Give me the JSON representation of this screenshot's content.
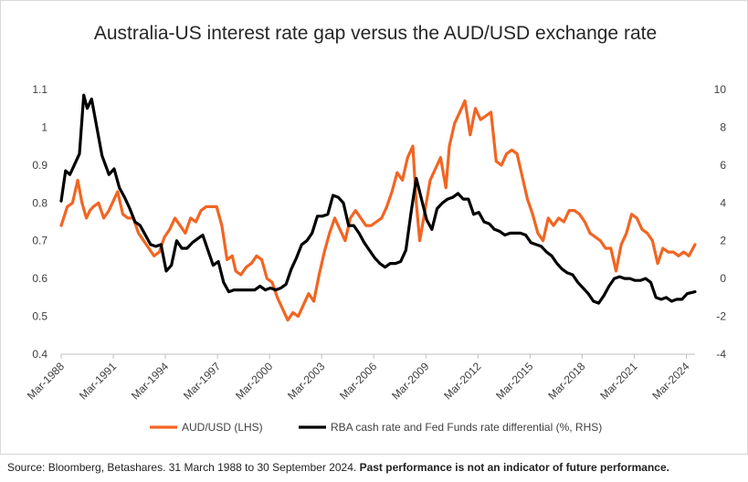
{
  "chart_data": {
    "type": "line",
    "title": "Australia-US interest rate gap versus the AUD/USD exchange rate",
    "left_axis": {
      "min": 0.4,
      "max": 1.1,
      "ticks": [
        "0.4",
        "0.5",
        "0.6",
        "0.7",
        "0.8",
        "0.9",
        "1",
        "1.1"
      ]
    },
    "right_axis": {
      "min": -4,
      "max": 10,
      "ticks": [
        "-4",
        "-2",
        "0",
        "2",
        "4",
        "6",
        "8",
        "10"
      ]
    },
    "x_axis": {
      "start": 1988.25,
      "end": 2024.75,
      "tick_labels": [
        "Mar-1988",
        "Mar-1991",
        "Mar-1994",
        "Mar-1997",
        "Mar-2000",
        "Mar-2003",
        "Mar-2006",
        "Mar-2009",
        "Mar-2012",
        "Mar-2015",
        "Mar-2018",
        "Mar-2021",
        "Mar-2024"
      ]
    },
    "grid": false,
    "legend_position": "bottom",
    "series": [
      {
        "name": "AUD/USD (LHS)",
        "axis": "left",
        "color": "#f26522",
        "x": [
          1988.25,
          1988.6,
          1988.9,
          1989.2,
          1989.45,
          1989.7,
          1989.9,
          1990.1,
          1990.4,
          1990.7,
          1991.0,
          1991.2,
          1991.5,
          1991.8,
          1992.1,
          1992.4,
          1992.7,
          1993.0,
          1993.3,
          1993.6,
          1993.9,
          1994.2,
          1994.5,
          1994.8,
          1995.1,
          1995.4,
          1995.7,
          1996.0,
          1996.3,
          1996.6,
          1996.9,
          1997.2,
          1997.5,
          1997.8,
          1998.1,
          1998.3,
          1998.6,
          1998.9,
          1999.2,
          1999.5,
          1999.8,
          2000.1,
          2000.4,
          2000.7,
          2001.0,
          2001.3,
          2001.6,
          2001.9,
          2002.2,
          2002.5,
          2002.8,
          2003.1,
          2003.4,
          2003.7,
          2004.0,
          2004.3,
          2004.6,
          2004.9,
          2005.2,
          2005.5,
          2005.8,
          2006.1,
          2006.4,
          2006.7,
          2007.0,
          2007.3,
          2007.6,
          2007.9,
          2008.2,
          2008.5,
          2008.7,
          2008.9,
          2009.2,
          2009.5,
          2009.8,
          2010.1,
          2010.4,
          2010.6,
          2010.9,
          2011.2,
          2011.5,
          2011.8,
          2012.1,
          2012.4,
          2012.7,
          2013.0,
          2013.3,
          2013.6,
          2013.9,
          2014.2,
          2014.5,
          2014.8,
          2015.1,
          2015.4,
          2015.7,
          2016.0,
          2016.3,
          2016.6,
          2016.9,
          2017.2,
          2017.5,
          2017.8,
          2018.1,
          2018.4,
          2018.7,
          2019.0,
          2019.3,
          2019.6,
          2019.9,
          2020.2,
          2020.5,
          2020.8,
          2021.1,
          2021.4,
          2021.7,
          2022.0,
          2022.3,
          2022.6,
          2022.9,
          2023.2,
          2023.5,
          2023.8,
          2024.1,
          2024.4,
          2024.75
        ],
        "values": [
          0.74,
          0.79,
          0.8,
          0.86,
          0.8,
          0.76,
          0.78,
          0.79,
          0.8,
          0.76,
          0.78,
          0.8,
          0.83,
          0.77,
          0.76,
          0.76,
          0.72,
          0.7,
          0.68,
          0.66,
          0.67,
          0.71,
          0.73,
          0.76,
          0.74,
          0.72,
          0.76,
          0.75,
          0.78,
          0.79,
          0.79,
          0.79,
          0.74,
          0.65,
          0.66,
          0.62,
          0.61,
          0.63,
          0.64,
          0.66,
          0.65,
          0.6,
          0.59,
          0.55,
          0.52,
          0.49,
          0.51,
          0.5,
          0.53,
          0.56,
          0.54,
          0.61,
          0.67,
          0.72,
          0.76,
          0.73,
          0.7,
          0.76,
          0.78,
          0.76,
          0.74,
          0.74,
          0.75,
          0.76,
          0.79,
          0.83,
          0.88,
          0.86,
          0.92,
          0.95,
          0.8,
          0.7,
          0.78,
          0.86,
          0.89,
          0.92,
          0.84,
          0.95,
          1.01,
          1.04,
          1.07,
          0.98,
          1.05,
          1.02,
          1.03,
          1.04,
          0.91,
          0.9,
          0.93,
          0.94,
          0.93,
          0.87,
          0.81,
          0.77,
          0.72,
          0.7,
          0.76,
          0.74,
          0.76,
          0.75,
          0.78,
          0.78,
          0.77,
          0.75,
          0.72,
          0.71,
          0.7,
          0.68,
          0.68,
          0.62,
          0.69,
          0.72,
          0.77,
          0.76,
          0.73,
          0.72,
          0.7,
          0.64,
          0.68,
          0.67,
          0.67,
          0.66,
          0.67,
          0.66,
          0.69
        ]
      },
      {
        "name": "RBA cash rate and Fed Funds rate differential (%, RHS)",
        "axis": "right",
        "color": "#000000",
        "x": [
          1988.25,
          1988.5,
          1988.75,
          1989.0,
          1989.3,
          1989.55,
          1989.75,
          1990.0,
          1990.3,
          1990.6,
          1991.0,
          1991.3,
          1991.6,
          1991.9,
          1992.2,
          1992.5,
          1992.8,
          1993.1,
          1993.4,
          1993.7,
          1994.0,
          1994.3,
          1994.6,
          1994.9,
          1995.2,
          1995.5,
          1995.8,
          1996.1,
          1996.4,
          1996.7,
          1997.0,
          1997.3,
          1997.6,
          1997.9,
          1998.2,
          1998.5,
          1998.8,
          1999.1,
          1999.4,
          1999.7,
          2000.0,
          2000.3,
          2000.6,
          2000.9,
          2001.2,
          2001.5,
          2001.8,
          2002.1,
          2002.4,
          2002.7,
          2003.0,
          2003.3,
          2003.6,
          2003.9,
          2004.2,
          2004.5,
          2004.8,
          2005.1,
          2005.4,
          2005.7,
          2006.0,
          2006.3,
          2006.6,
          2006.9,
          2007.2,
          2007.5,
          2007.8,
          2008.1,
          2008.4,
          2008.7,
          2009.0,
          2009.3,
          2009.6,
          2009.9,
          2010.2,
          2010.5,
          2010.8,
          2011.1,
          2011.4,
          2011.7,
          2012.0,
          2012.3,
          2012.6,
          2012.9,
          2013.2,
          2013.5,
          2013.8,
          2014.1,
          2014.4,
          2014.7,
          2015.0,
          2015.3,
          2015.6,
          2015.9,
          2016.2,
          2016.5,
          2016.8,
          2017.1,
          2017.4,
          2017.7,
          2018.0,
          2018.3,
          2018.6,
          2018.9,
          2019.2,
          2019.5,
          2019.8,
          2020.1,
          2020.4,
          2020.7,
          2021.0,
          2021.3,
          2021.6,
          2021.9,
          2022.2,
          2022.5,
          2022.8,
          2023.1,
          2023.4,
          2023.7,
          2024.0,
          2024.3,
          2024.75
        ],
        "values": [
          4.1,
          5.7,
          5.5,
          6.0,
          6.6,
          9.7,
          9.0,
          9.5,
          8.0,
          6.5,
          5.5,
          5.8,
          4.8,
          4.3,
          3.7,
          3.0,
          2.8,
          2.3,
          1.8,
          1.7,
          1.8,
          0.4,
          0.7,
          2.0,
          1.6,
          1.6,
          1.9,
          2.1,
          2.3,
          1.5,
          0.7,
          0.9,
          -0.2,
          -0.7,
          -0.6,
          -0.6,
          -0.6,
          -0.6,
          -0.6,
          -0.4,
          -0.6,
          -0.5,
          -0.6,
          -0.5,
          -0.3,
          0.5,
          1.1,
          1.8,
          2.0,
          2.4,
          3.3,
          3.3,
          3.4,
          4.4,
          4.3,
          4.0,
          2.8,
          2.8,
          2.4,
          1.9,
          1.5,
          1.1,
          0.8,
          0.6,
          0.8,
          0.8,
          0.9,
          1.5,
          3.5,
          5.3,
          4.2,
          3.1,
          2.6,
          3.7,
          4.0,
          4.2,
          4.3,
          4.5,
          4.2,
          4.2,
          3.4,
          3.5,
          3.0,
          2.9,
          2.6,
          2.5,
          2.3,
          2.4,
          2.4,
          2.4,
          2.3,
          1.9,
          1.8,
          1.7,
          1.4,
          1.2,
          0.8,
          0.5,
          0.3,
          0.2,
          -0.2,
          -0.5,
          -0.8,
          -1.2,
          -1.3,
          -0.9,
          -0.4,
          0.0,
          0.1,
          0.0,
          0.0,
          -0.1,
          -0.1,
          0.0,
          -0.2,
          -1.0,
          -1.1,
          -1.0,
          -1.2,
          -1.1,
          -1.1,
          -0.8,
          -0.7
        ]
      }
    ]
  },
  "source_note": {
    "text": "Source: Bloomberg, Betashares. 31 March 1988 to 30 September 2024.",
    "disclaimer": "Past performance is not an indicator of future performance."
  }
}
